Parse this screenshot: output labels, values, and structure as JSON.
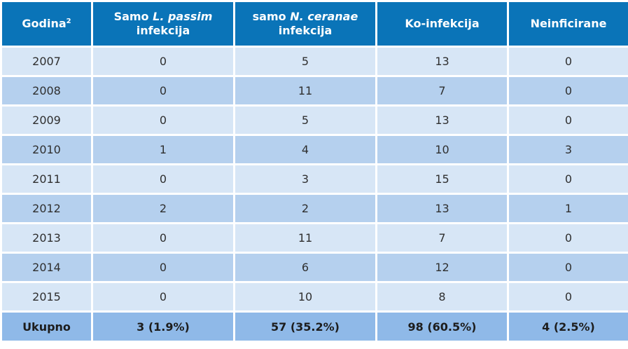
{
  "table": {
    "header": {
      "year": "Godina",
      "year_sup": "2",
      "col1_pre": "Samo ",
      "col1_em": "L. passim",
      "col1_post": "infekcija",
      "col2_pre": "samo ",
      "col2_em": "N. ceranae",
      "col2_post": "infekcija",
      "col3": "Ko-infekcija",
      "col4": "Neinficirane"
    },
    "rows": [
      [
        "2007",
        "0",
        "5",
        "13",
        "0"
      ],
      [
        "2008",
        "0",
        "11",
        "7",
        "0"
      ],
      [
        "2009",
        "0",
        "5",
        "13",
        "0"
      ],
      [
        "2010",
        "1",
        "4",
        "10",
        "3"
      ],
      [
        "2011",
        "0",
        "3",
        "15",
        "0"
      ],
      [
        "2012",
        "2",
        "2",
        "13",
        "1"
      ],
      [
        "2013",
        "0",
        "11",
        "7",
        "0"
      ],
      [
        "2014",
        "0",
        "6",
        "12",
        "0"
      ],
      [
        "2015",
        "0",
        "10",
        "8",
        "0"
      ]
    ],
    "footer": [
      "Ukupno",
      "3 (1.9%)",
      "57 (35.2%)",
      "98 (60.5%)",
      "4 (2.5%)"
    ]
  },
  "colors": {
    "header_bg": "#0a74b8",
    "row_light": "#d7e6f6",
    "row_dark": "#b5d0ee",
    "footer_bg": "#8fb9e8"
  }
}
